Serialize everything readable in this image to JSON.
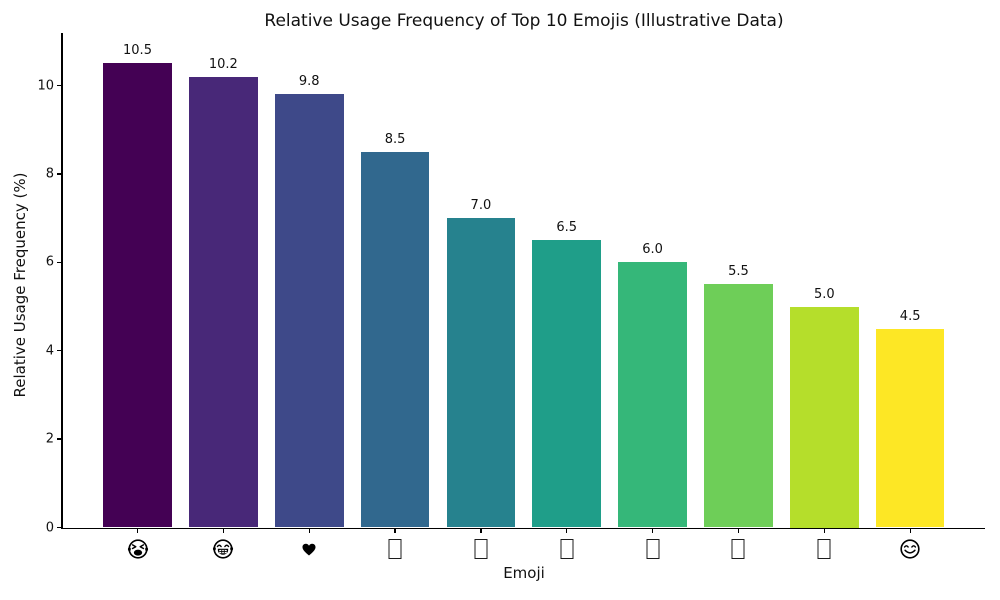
{
  "figure": {
    "background_color": "#ffffff",
    "text_color": "#111111"
  },
  "chart_data": {
    "type": "bar",
    "title": "Relative Usage Frequency of Top 10 Emojis (Illustrative Data)",
    "xlabel": "Emoji",
    "ylabel": "Relative Usage Frequency (%)",
    "categories": [
      "😭",
      "😂",
      "❤",
      "□",
      "□",
      "□",
      "□",
      "□",
      "□",
      "😊"
    ],
    "category_icons": [
      "loudly-crying-face",
      "face-with-tears-of-joy",
      "black-heart",
      "missing-glyph",
      "missing-glyph",
      "missing-glyph",
      "missing-glyph",
      "missing-glyph",
      "missing-glyph",
      "smiling-face"
    ],
    "values": [
      10.5,
      10.2,
      9.8,
      8.5,
      7.0,
      6.5,
      6.0,
      5.5,
      5.0,
      4.5
    ],
    "value_labels": [
      "10.5",
      "10.2",
      "9.8",
      "8.5",
      "7.0",
      "6.5",
      "6.0",
      "5.5",
      "5.0",
      "4.5"
    ],
    "bar_colors": [
      "#440154",
      "#482878",
      "#3e4989",
      "#31688e",
      "#26828e",
      "#1f9e89",
      "#35b779",
      "#6ece58",
      "#b5de2b",
      "#fde725"
    ],
    "palette_name": "viridis",
    "yticks": [
      "0",
      "2",
      "4",
      "6",
      "8",
      "10"
    ],
    "ytick_values": [
      0,
      2,
      4,
      6,
      8,
      10
    ],
    "ylim": [
      0,
      11.2
    ],
    "grid": false,
    "legend": "none",
    "bar_width_fraction": 0.8
  }
}
